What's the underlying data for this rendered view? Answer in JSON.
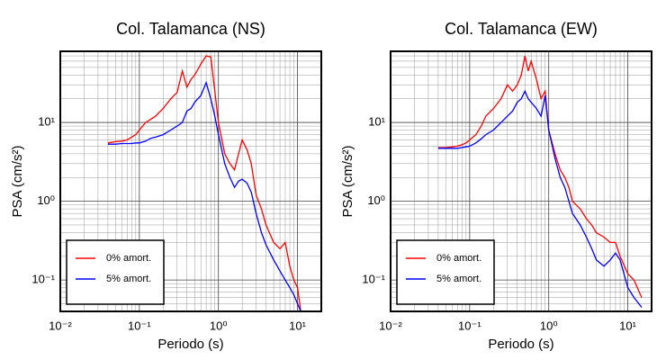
{
  "chart_data": [
    {
      "type": "line",
      "title": "Col. Talamanca (NS)",
      "x_label": "Periodo (s)",
      "y_label": "PSA (cm/s²)",
      "x": [
        0.04,
        0.05,
        0.06,
        0.07,
        0.08,
        0.09,
        0.1,
        0.12,
        0.14,
        0.16,
        0.2,
        0.25,
        0.3,
        0.35,
        0.4,
        0.45,
        0.5,
        0.6,
        0.7,
        0.8,
        0.9,
        1.0,
        1.2,
        1.4,
        1.6,
        1.8,
        2.0,
        2.3,
        2.6,
        3.0,
        3.5,
        4,
        5,
        6,
        7,
        8,
        9,
        10,
        11
      ],
      "series": [
        {
          "name": "0% amort.",
          "color": "#ff0000",
          "values": [
            5.5,
            5.7,
            5.8,
            6,
            6.5,
            7,
            8,
            10,
            11,
            12,
            15,
            20,
            24,
            45,
            28,
            35,
            40,
            55,
            70,
            68,
            25,
            10,
            4,
            3,
            2.5,
            4,
            6,
            4.5,
            3,
            1.2,
            0.8,
            0.5,
            0.3,
            0.25,
            0.3,
            0.15,
            0.1,
            0.08,
            0.04
          ]
        },
        {
          "name": "5% amort.",
          "color": "#0000ff",
          "values": [
            5.3,
            5.3,
            5.4,
            5.4,
            5.4,
            5.5,
            5.5,
            5.8,
            6.3,
            6.5,
            7,
            8,
            9,
            10,
            14,
            15,
            18,
            22,
            32,
            20,
            12,
            7,
            3,
            2,
            1.5,
            1.8,
            1.9,
            1.7,
            1.3,
            0.7,
            0.4,
            0.28,
            0.18,
            0.13,
            0.1,
            0.08,
            0.065,
            0.05,
            0.04
          ]
        }
      ],
      "xlim": [
        0.01,
        20
      ],
      "ylim": [
        0.04,
        80
      ],
      "xlog": true,
      "ylog": true,
      "grid": true,
      "minor_grid": true,
      "legend": "lower left",
      "xticks": [
        {
          "value": 0.01,
          "label": "10⁻²"
        },
        {
          "value": 0.1,
          "label": "10⁻¹"
        },
        {
          "value": 1,
          "label": "10⁰"
        },
        {
          "value": 10,
          "label": "10¹"
        }
      ],
      "yticks": [
        {
          "value": 0.1,
          "label": "10⁻¹"
        },
        {
          "value": 1,
          "label": "10⁰"
        },
        {
          "value": 10,
          "label": "10¹"
        }
      ]
    },
    {
      "type": "line",
      "title": "Col. Talamanca (EW)",
      "x_label": "Periodo (s)",
      "y_label": "PSA (cm/s²)",
      "x": [
        0.04,
        0.05,
        0.06,
        0.07,
        0.08,
        0.09,
        0.1,
        0.12,
        0.14,
        0.16,
        0.2,
        0.25,
        0.3,
        0.35,
        0.4,
        0.45,
        0.5,
        0.55,
        0.6,
        0.7,
        0.8,
        0.9,
        1.0,
        1.2,
        1.4,
        1.6,
        1.8,
        2.0,
        2.5,
        3,
        3.5,
        4,
        5,
        6,
        7,
        8,
        10,
        12,
        15
      ],
      "series": [
        {
          "name": "0% amort.",
          "color": "#ff0000",
          "values": [
            4.8,
            4.8,
            4.9,
            5,
            5.2,
            5.5,
            6,
            7,
            9,
            12,
            15,
            20,
            30,
            25,
            30,
            40,
            70,
            45,
            60,
            35,
            20,
            25,
            8,
            4,
            2.5,
            2,
            1.5,
            1,
            0.8,
            0.6,
            0.5,
            0.4,
            0.35,
            0.3,
            0.3,
            0.2,
            0.12,
            0.1,
            0.06
          ]
        },
        {
          "name": "5% amort.",
          "color": "#0000ff",
          "values": [
            4.7,
            4.7,
            4.7,
            4.7,
            4.8,
            4.9,
            5,
            5.5,
            6.2,
            7,
            8,
            10,
            12,
            14,
            18,
            20,
            25,
            20,
            18,
            15,
            12,
            22,
            8,
            3.5,
            2,
            1.5,
            1,
            0.7,
            0.5,
            0.35,
            0.25,
            0.18,
            0.15,
            0.18,
            0.22,
            0.18,
            0.08,
            0.06,
            0.045
          ]
        }
      ],
      "xlim": [
        0.01,
        20
      ],
      "ylim": [
        0.04,
        80
      ],
      "xlog": true,
      "ylog": true,
      "grid": true,
      "minor_grid": true,
      "legend": "lower left",
      "xticks": [
        {
          "value": 0.01,
          "label": "10⁻²"
        },
        {
          "value": 0.1,
          "label": "10⁻¹"
        },
        {
          "value": 1,
          "label": "10⁰"
        },
        {
          "value": 10,
          "label": "10¹"
        }
      ],
      "yticks": [
        {
          "value": 0.1,
          "label": "10⁻¹"
        },
        {
          "value": 1,
          "label": "10⁰"
        },
        {
          "value": 10,
          "label": "10¹"
        }
      ]
    }
  ]
}
